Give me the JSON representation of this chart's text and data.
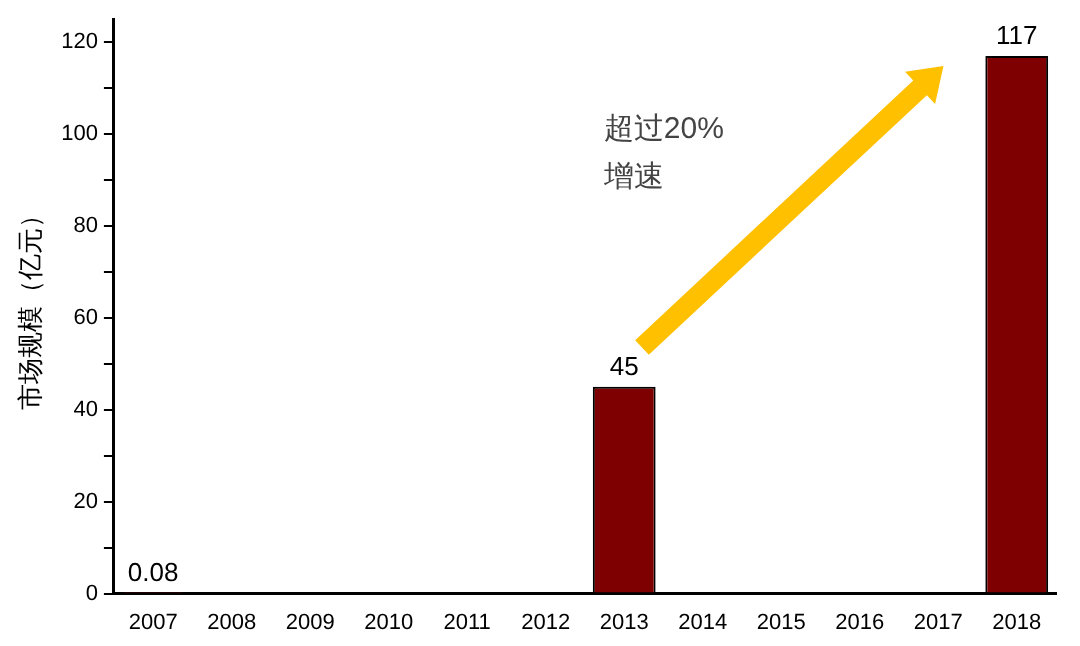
{
  "chart_data": {
    "type": "bar",
    "ylabel": "市场规模（亿元）",
    "categories": [
      "2007",
      "2008",
      "2009",
      "2010",
      "2011",
      "2012",
      "2013",
      "2014",
      "2015",
      "2016",
      "2017",
      "2018"
    ],
    "values": [
      0.08,
      null,
      null,
      null,
      null,
      null,
      45,
      null,
      null,
      null,
      null,
      117
    ],
    "value_labels": [
      "0.08",
      null,
      null,
      null,
      null,
      null,
      "45",
      null,
      null,
      null,
      null,
      "117"
    ],
    "color": "#7f0000",
    "ylim": [
      0,
      125
    ],
    "yticks": [
      0,
      {
        "value": 10,
        "label": null
      },
      20,
      {
        "value": 30,
        "label": null
      },
      40,
      {
        "value": 50,
        "label": null
      },
      60,
      {
        "value": 70,
        "label": null
      },
      80,
      {
        "value": 90,
        "label": null
      },
      100,
      {
        "value": 110,
        "label": null
      },
      120
    ],
    "annotations": [
      "超过20%\n增速"
    ],
    "grid": false,
    "legend": false
  }
}
